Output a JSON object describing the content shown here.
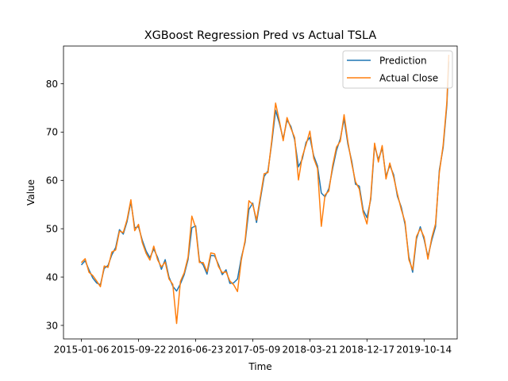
{
  "chart_data": {
    "type": "line",
    "title": "XGBoost Regression Pred vs Actual TSLA",
    "xlabel": "Time",
    "ylabel": "Value",
    "x_tick_labels": [
      "2015-01-06",
      "2015-09-22",
      "2016-06-23",
      "2017-05-09",
      "2018-03-21",
      "2018-12-17",
      "2019-10-14"
    ],
    "x_tick_index": [
      0,
      60,
      120,
      180,
      240,
      300,
      360
    ],
    "y_ticks": [
      30,
      40,
      50,
      60,
      70,
      80
    ],
    "ylim": [
      27.2,
      87.8
    ],
    "xlim": [
      -18.8,
      394.8
    ],
    "legend_placement": "upper right",
    "grid": false,
    "series": [
      {
        "name": "Prediction",
        "color": "#1f77b4",
        "points": [
          [
            0,
            42.5
          ],
          [
            4,
            43.4
          ],
          [
            8,
            41.5
          ],
          [
            12,
            39.8
          ],
          [
            16,
            38.8
          ],
          [
            20,
            38.4
          ],
          [
            24,
            41.8
          ],
          [
            28,
            42.4
          ],
          [
            32,
            44.6
          ],
          [
            36,
            46.1
          ],
          [
            40,
            49.8
          ],
          [
            44,
            48.9
          ],
          [
            48,
            51.5
          ],
          [
            52,
            55.6
          ],
          [
            56,
            50.2
          ],
          [
            60,
            50.4
          ],
          [
            64,
            47.6
          ],
          [
            68,
            45.4
          ],
          [
            72,
            44.0
          ],
          [
            76,
            45.8
          ],
          [
            80,
            44.1
          ],
          [
            84,
            41.6
          ],
          [
            88,
            43.6
          ],
          [
            92,
            40.0
          ],
          [
            96,
            38.1
          ],
          [
            100,
            37.1
          ],
          [
            104,
            38.6
          ],
          [
            108,
            40.5
          ],
          [
            112,
            43.6
          ],
          [
            116,
            50.2
          ],
          [
            120,
            50.6
          ],
          [
            124,
            43.4
          ],
          [
            128,
            42.5
          ],
          [
            132,
            40.6
          ],
          [
            136,
            44.5
          ],
          [
            140,
            44.4
          ],
          [
            144,
            42.6
          ],
          [
            148,
            40.5
          ],
          [
            152,
            41.5
          ],
          [
            156,
            38.7
          ],
          [
            160,
            38.8
          ],
          [
            164,
            39.6
          ],
          [
            168,
            44.0
          ],
          [
            172,
            47.2
          ],
          [
            176,
            54.0
          ],
          [
            180,
            55.3
          ],
          [
            184,
            51.3
          ],
          [
            188,
            56.1
          ],
          [
            192,
            60.8
          ],
          [
            196,
            62.0
          ],
          [
            200,
            67.8
          ],
          [
            204,
            74.5
          ],
          [
            208,
            71.8
          ],
          [
            212,
            68.6
          ],
          [
            216,
            72.5
          ],
          [
            220,
            71.2
          ],
          [
            224,
            68.4
          ],
          [
            228,
            62.8
          ],
          [
            232,
            64.4
          ],
          [
            236,
            67.9
          ],
          [
            240,
            68.9
          ],
          [
            244,
            65.1
          ],
          [
            248,
            63.0
          ],
          [
            252,
            57.4
          ],
          [
            256,
            56.6
          ],
          [
            260,
            58.3
          ],
          [
            264,
            62.5
          ],
          [
            268,
            66.2
          ],
          [
            272,
            68.6
          ],
          [
            276,
            72.7
          ],
          [
            280,
            67.5
          ],
          [
            284,
            64.0
          ],
          [
            288,
            59.2
          ],
          [
            292,
            58.8
          ],
          [
            296,
            53.9
          ],
          [
            300,
            52.3
          ],
          [
            304,
            56.1
          ],
          [
            308,
            67.2
          ],
          [
            312,
            64.3
          ],
          [
            316,
            66.7
          ],
          [
            320,
            60.8
          ],
          [
            324,
            63.1
          ],
          [
            328,
            61.2
          ],
          [
            332,
            56.7
          ],
          [
            336,
            54.5
          ],
          [
            340,
            50.9
          ],
          [
            344,
            44.2
          ],
          [
            348,
            41.0
          ],
          [
            352,
            47.9
          ],
          [
            356,
            50.4
          ],
          [
            360,
            47.8
          ],
          [
            364,
            44.2
          ],
          [
            368,
            47.6
          ],
          [
            372,
            50.4
          ],
          [
            376,
            62.1
          ],
          [
            380,
            66.8
          ],
          [
            384,
            75.6
          ],
          [
            386,
            84.6
          ]
        ]
      },
      {
        "name": "Actual Close",
        "color": "#ff7f0e",
        "points": [
          [
            0,
            43.0
          ],
          [
            4,
            43.8
          ],
          [
            8,
            41.0
          ],
          [
            12,
            40.3
          ],
          [
            16,
            39.2
          ],
          [
            20,
            38.0
          ],
          [
            24,
            42.3
          ],
          [
            28,
            42.0
          ],
          [
            32,
            45.2
          ],
          [
            36,
            45.6
          ],
          [
            40,
            49.5
          ],
          [
            44,
            49.2
          ],
          [
            48,
            51.9
          ],
          [
            52,
            56.0
          ],
          [
            56,
            49.6
          ],
          [
            60,
            50.9
          ],
          [
            64,
            47.1
          ],
          [
            68,
            44.9
          ],
          [
            72,
            43.5
          ],
          [
            76,
            46.4
          ],
          [
            80,
            43.6
          ],
          [
            84,
            42.1
          ],
          [
            88,
            43.1
          ],
          [
            92,
            39.6
          ],
          [
            96,
            38.5
          ],
          [
            100,
            30.4
          ],
          [
            104,
            39.1
          ],
          [
            108,
            40.9
          ],
          [
            112,
            44.1
          ],
          [
            116,
            52.6
          ],
          [
            120,
            50.2
          ],
          [
            124,
            43.0
          ],
          [
            128,
            43.0
          ],
          [
            132,
            41.1
          ],
          [
            136,
            45.0
          ],
          [
            140,
            44.8
          ],
          [
            144,
            42.2
          ],
          [
            148,
            40.9
          ],
          [
            152,
            41.1
          ],
          [
            156,
            39.2
          ],
          [
            160,
            38.4
          ],
          [
            164,
            37.0
          ],
          [
            168,
            43.5
          ],
          [
            172,
            47.6
          ],
          [
            176,
            55.8
          ],
          [
            180,
            55.0
          ],
          [
            184,
            51.8
          ],
          [
            188,
            56.6
          ],
          [
            192,
            61.4
          ],
          [
            196,
            61.6
          ],
          [
            200,
            68.3
          ],
          [
            204,
            76.0
          ],
          [
            208,
            72.3
          ],
          [
            212,
            68.2
          ],
          [
            216,
            73.0
          ],
          [
            220,
            70.8
          ],
          [
            224,
            68.9
          ],
          [
            228,
            60.1
          ],
          [
            232,
            64.9
          ],
          [
            236,
            67.4
          ],
          [
            240,
            70.2
          ],
          [
            244,
            64.6
          ],
          [
            248,
            62.5
          ],
          [
            252,
            50.5
          ],
          [
            256,
            57.0
          ],
          [
            260,
            57.8
          ],
          [
            264,
            63.1
          ],
          [
            268,
            66.9
          ],
          [
            272,
            68.1
          ],
          [
            276,
            73.6
          ],
          [
            280,
            68.0
          ],
          [
            284,
            63.5
          ],
          [
            288,
            59.7
          ],
          [
            292,
            58.2
          ],
          [
            296,
            53.4
          ],
          [
            300,
            51.0
          ],
          [
            304,
            56.6
          ],
          [
            308,
            67.7
          ],
          [
            312,
            63.8
          ],
          [
            316,
            67.2
          ],
          [
            320,
            60.3
          ],
          [
            324,
            63.6
          ],
          [
            328,
            60.7
          ],
          [
            332,
            57.2
          ],
          [
            336,
            54.0
          ],
          [
            340,
            51.4
          ],
          [
            344,
            43.6
          ],
          [
            348,
            41.5
          ],
          [
            352,
            48.4
          ],
          [
            356,
            50.0
          ],
          [
            360,
            48.3
          ],
          [
            364,
            43.7
          ],
          [
            368,
            48.1
          ],
          [
            372,
            51.0
          ],
          [
            376,
            61.6
          ],
          [
            380,
            67.3
          ],
          [
            384,
            76.2
          ],
          [
            386,
            86.0
          ]
        ]
      }
    ]
  }
}
